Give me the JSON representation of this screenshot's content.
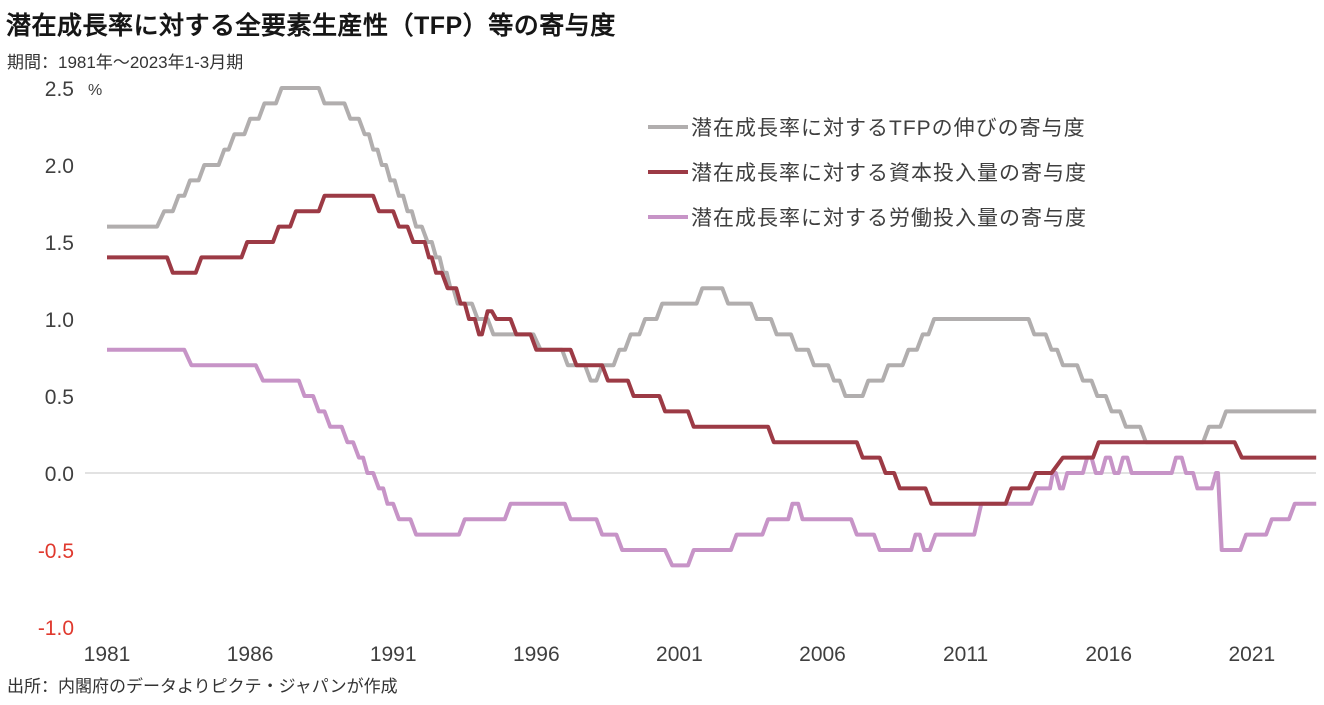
{
  "title": "潜在成長率に対する全要素生産性（TFP）等の寄与度",
  "subtitle": "期間：1981年～2023年1-3月期",
  "source": "出所：内閣府のデータよりピクテ・ジャパンが作成",
  "colors": {
    "tfp_line": "#b1aeae",
    "capital_line": "#9c3a45",
    "labor_line": "#c794c7",
    "axis_text": "#3f3f3f",
    "negative_tick": "#e0392e",
    "zero_gridline": "#d9d9d9",
    "title_text": "#161616"
  },
  "legend": [
    {
      "label": "潜在成長率に対するTFPの伸びの寄与度",
      "color": "#b1aeae"
    },
    {
      "label": "潜在成長率に対する資本投入量の寄与度",
      "color": "#9c3a45"
    },
    {
      "label": "潜在成長率に対する労働投入量の寄与度",
      "color": "#c794c7"
    }
  ],
  "chart_data": {
    "type": "line",
    "title": "潜在成長率に対する全要素生産性（TFP）等の寄与度",
    "xlabel": "",
    "ylabel": "%",
    "y_unit": "%",
    "x_range": [
      1981,
      2023.25
    ],
    "ylim": [
      -1.0,
      2.5
    ],
    "x_ticks": [
      1981,
      1986,
      1991,
      1996,
      2001,
      2006,
      2011,
      2016,
      2021
    ],
    "y_ticks": [
      2.5,
      2.0,
      1.5,
      1.0,
      0.5,
      0.0,
      -0.5,
      -1.0
    ],
    "grid": "zero-line-only",
    "legend_position": "top-right",
    "series": [
      {
        "name": "潜在成長率に対するTFPの伸びの寄与度",
        "color": "#b1aeae",
        "points": [
          [
            1981,
            1.6
          ],
          [
            1982.75,
            1.6
          ],
          [
            1983,
            1.7
          ],
          [
            1983.3,
            1.7
          ],
          [
            1983.5,
            1.8
          ],
          [
            1983.7,
            1.8
          ],
          [
            1983.9,
            1.9
          ],
          [
            1984.2,
            1.9
          ],
          [
            1984.4,
            2.0
          ],
          [
            1984.9,
            2.0
          ],
          [
            1985.1,
            2.1
          ],
          [
            1985.25,
            2.1
          ],
          [
            1985.45,
            2.2
          ],
          [
            1985.8,
            2.2
          ],
          [
            1986,
            2.3
          ],
          [
            1986.3,
            2.3
          ],
          [
            1986.5,
            2.4
          ],
          [
            1986.9,
            2.4
          ],
          [
            1987.1,
            2.5
          ],
          [
            1988.4,
            2.5
          ],
          [
            1988.6,
            2.4
          ],
          [
            1989.3,
            2.4
          ],
          [
            1989.5,
            2.3
          ],
          [
            1989.8,
            2.3
          ],
          [
            1990,
            2.2
          ],
          [
            1990.15,
            2.2
          ],
          [
            1990.3,
            2.1
          ],
          [
            1990.45,
            2.1
          ],
          [
            1990.6,
            2.0
          ],
          [
            1990.75,
            2.0
          ],
          [
            1990.9,
            1.9
          ],
          [
            1991.05,
            1.9
          ],
          [
            1991.2,
            1.8
          ],
          [
            1991.35,
            1.8
          ],
          [
            1991.5,
            1.7
          ],
          [
            1991.65,
            1.7
          ],
          [
            1991.8,
            1.6
          ],
          [
            1992,
            1.6
          ],
          [
            1992.2,
            1.5
          ],
          [
            1992.35,
            1.5
          ],
          [
            1992.5,
            1.4
          ],
          [
            1992.62,
            1.4
          ],
          [
            1992.75,
            1.3
          ],
          [
            1992.87,
            1.3
          ],
          [
            1993,
            1.2
          ],
          [
            1993.1,
            1.2
          ],
          [
            1993.25,
            1.1
          ],
          [
            1993.75,
            1.1
          ],
          [
            1993.95,
            1.0
          ],
          [
            1994.3,
            1.0
          ],
          [
            1994.5,
            0.9
          ],
          [
            1995.9,
            0.9
          ],
          [
            1996.15,
            0.8
          ],
          [
            1996.9,
            0.8
          ],
          [
            1997.1,
            0.7
          ],
          [
            1997.7,
            0.7
          ],
          [
            1997.9,
            0.6
          ],
          [
            1998.1,
            0.6
          ],
          [
            1998.3,
            0.7
          ],
          [
            1998.7,
            0.7
          ],
          [
            1998.9,
            0.8
          ],
          [
            1999.1,
            0.8
          ],
          [
            1999.3,
            0.9
          ],
          [
            1999.6,
            0.9
          ],
          [
            1999.8,
            1.0
          ],
          [
            2000.2,
            1.0
          ],
          [
            2000.4,
            1.1
          ],
          [
            2001.6,
            1.1
          ],
          [
            2001.8,
            1.2
          ],
          [
            2002.5,
            1.2
          ],
          [
            2002.7,
            1.1
          ],
          [
            2003.5,
            1.1
          ],
          [
            2003.7,
            1.0
          ],
          [
            2004.2,
            1.0
          ],
          [
            2004.4,
            0.9
          ],
          [
            2004.9,
            0.9
          ],
          [
            2005.1,
            0.8
          ],
          [
            2005.5,
            0.8
          ],
          [
            2005.7,
            0.7
          ],
          [
            2006.2,
            0.7
          ],
          [
            2006.4,
            0.6
          ],
          [
            2006.6,
            0.6
          ],
          [
            2006.8,
            0.5
          ],
          [
            2007.4,
            0.5
          ],
          [
            2007.6,
            0.6
          ],
          [
            2008.1,
            0.6
          ],
          [
            2008.3,
            0.7
          ],
          [
            2008.8,
            0.7
          ],
          [
            2009,
            0.8
          ],
          [
            2009.3,
            0.8
          ],
          [
            2009.5,
            0.9
          ],
          [
            2009.7,
            0.9
          ],
          [
            2009.9,
            1.0
          ],
          [
            2013.2,
            1.0
          ],
          [
            2013.4,
            0.9
          ],
          [
            2013.8,
            0.9
          ],
          [
            2014,
            0.8
          ],
          [
            2014.2,
            0.8
          ],
          [
            2014.4,
            0.7
          ],
          [
            2014.9,
            0.7
          ],
          [
            2015.1,
            0.6
          ],
          [
            2015.4,
            0.6
          ],
          [
            2015.6,
            0.5
          ],
          [
            2015.9,
            0.5
          ],
          [
            2016.1,
            0.4
          ],
          [
            2016.4,
            0.4
          ],
          [
            2016.6,
            0.3
          ],
          [
            2017.1,
            0.3
          ],
          [
            2017.3,
            0.2
          ],
          [
            2019.3,
            0.2
          ],
          [
            2019.5,
            0.3
          ],
          [
            2019.9,
            0.3
          ],
          [
            2020.1,
            0.4
          ],
          [
            2023.25,
            0.4
          ]
        ]
      },
      {
        "name": "潜在成長率に対する労働投入量の寄与度",
        "color": "#c794c7",
        "points": [
          [
            1981,
            0.8
          ],
          [
            1983.7,
            0.8
          ],
          [
            1983.95,
            0.7
          ],
          [
            1986.2,
            0.7
          ],
          [
            1986.45,
            0.6
          ],
          [
            1987.7,
            0.6
          ],
          [
            1987.9,
            0.5
          ],
          [
            1988.2,
            0.5
          ],
          [
            1988.4,
            0.4
          ],
          [
            1988.6,
            0.4
          ],
          [
            1988.8,
            0.3
          ],
          [
            1989.2,
            0.3
          ],
          [
            1989.4,
            0.2
          ],
          [
            1989.6,
            0.2
          ],
          [
            1989.8,
            0.1
          ],
          [
            1989.95,
            0.1
          ],
          [
            1990.1,
            0.0
          ],
          [
            1990.3,
            0.0
          ],
          [
            1990.5,
            -0.1
          ],
          [
            1990.65,
            -0.1
          ],
          [
            1990.8,
            -0.2
          ],
          [
            1991,
            -0.2
          ],
          [
            1991.2,
            -0.3
          ],
          [
            1991.6,
            -0.3
          ],
          [
            1991.8,
            -0.4
          ],
          [
            1993.3,
            -0.4
          ],
          [
            1993.5,
            -0.3
          ],
          [
            1994.9,
            -0.3
          ],
          [
            1995.1,
            -0.2
          ],
          [
            1997,
            -0.2
          ],
          [
            1997.2,
            -0.3
          ],
          [
            1998.1,
            -0.3
          ],
          [
            1998.3,
            -0.4
          ],
          [
            1998.8,
            -0.4
          ],
          [
            1999,
            -0.5
          ],
          [
            2000.5,
            -0.5
          ],
          [
            2000.75,
            -0.6
          ],
          [
            2001.3,
            -0.6
          ],
          [
            2001.5,
            -0.5
          ],
          [
            2002.8,
            -0.5
          ],
          [
            2003,
            -0.4
          ],
          [
            2003.9,
            -0.4
          ],
          [
            2004.1,
            -0.3
          ],
          [
            2004.8,
            -0.3
          ],
          [
            2004.95,
            -0.2
          ],
          [
            2005.15,
            -0.2
          ],
          [
            2005.3,
            -0.3
          ],
          [
            2007,
            -0.3
          ],
          [
            2007.2,
            -0.4
          ],
          [
            2007.8,
            -0.4
          ],
          [
            2008,
            -0.5
          ],
          [
            2009.1,
            -0.5
          ],
          [
            2009.25,
            -0.4
          ],
          [
            2009.4,
            -0.4
          ],
          [
            2009.55,
            -0.5
          ],
          [
            2009.75,
            -0.5
          ],
          [
            2009.95,
            -0.4
          ],
          [
            2011.3,
            -0.4
          ],
          [
            2011.55,
            -0.2
          ],
          [
            2013.3,
            -0.2
          ],
          [
            2013.5,
            -0.1
          ],
          [
            2013.95,
            -0.1
          ],
          [
            2014.05,
            0.0
          ],
          [
            2014.15,
            0.0
          ],
          [
            2014.3,
            -0.1
          ],
          [
            2014.4,
            -0.1
          ],
          [
            2014.55,
            0.0
          ],
          [
            2015.1,
            0.0
          ],
          [
            2015.25,
            0.1
          ],
          [
            2015.4,
            0.1
          ],
          [
            2015.55,
            0.0
          ],
          [
            2015.75,
            0.0
          ],
          [
            2015.9,
            0.1
          ],
          [
            2016.05,
            0.1
          ],
          [
            2016.2,
            0.0
          ],
          [
            2016.35,
            0.0
          ],
          [
            2016.5,
            0.1
          ],
          [
            2016.65,
            0.1
          ],
          [
            2016.8,
            0.0
          ],
          [
            2018.2,
            0.0
          ],
          [
            2018.35,
            0.1
          ],
          [
            2018.55,
            0.1
          ],
          [
            2018.7,
            0.0
          ],
          [
            2018.95,
            0.0
          ],
          [
            2019.1,
            -0.1
          ],
          [
            2019.6,
            -0.1
          ],
          [
            2019.75,
            0.0
          ],
          [
            2019.82,
            0.0
          ],
          [
            2019.95,
            -0.5
          ],
          [
            2020.6,
            -0.5
          ],
          [
            2020.8,
            -0.4
          ],
          [
            2021.5,
            -0.4
          ],
          [
            2021.7,
            -0.3
          ],
          [
            2022.3,
            -0.3
          ],
          [
            2022.5,
            -0.2
          ],
          [
            2023.25,
            -0.2
          ]
        ]
      },
      {
        "name": "潜在成長率に対する資本投入量の寄与度",
        "color": "#9c3a45",
        "points": [
          [
            1981,
            1.4
          ],
          [
            1983.1,
            1.4
          ],
          [
            1983.3,
            1.3
          ],
          [
            1984.1,
            1.3
          ],
          [
            1984.3,
            1.4
          ],
          [
            1985.7,
            1.4
          ],
          [
            1985.9,
            1.5
          ],
          [
            1986.8,
            1.5
          ],
          [
            1987,
            1.6
          ],
          [
            1987.4,
            1.6
          ],
          [
            1987.6,
            1.7
          ],
          [
            1988.4,
            1.7
          ],
          [
            1988.6,
            1.8
          ],
          [
            1990.3,
            1.8
          ],
          [
            1990.5,
            1.7
          ],
          [
            1991,
            1.7
          ],
          [
            1991.2,
            1.6
          ],
          [
            1991.5,
            1.6
          ],
          [
            1991.7,
            1.5
          ],
          [
            1992.1,
            1.5
          ],
          [
            1992.25,
            1.4
          ],
          [
            1992.35,
            1.4
          ],
          [
            1992.5,
            1.3
          ],
          [
            1992.7,
            1.3
          ],
          [
            1992.9,
            1.2
          ],
          [
            1993.2,
            1.2
          ],
          [
            1993.35,
            1.1
          ],
          [
            1993.5,
            1.1
          ],
          [
            1993.65,
            1.0
          ],
          [
            1993.85,
            1.0
          ],
          [
            1994,
            0.9
          ],
          [
            1994.1,
            0.9
          ],
          [
            1994.3,
            1.05
          ],
          [
            1994.45,
            1.05
          ],
          [
            1994.6,
            1.0
          ],
          [
            1995.1,
            1.0
          ],
          [
            1995.3,
            0.9
          ],
          [
            1995.8,
            0.9
          ],
          [
            1996,
            0.8
          ],
          [
            1997.2,
            0.8
          ],
          [
            1997.4,
            0.7
          ],
          [
            1998.3,
            0.7
          ],
          [
            1998.5,
            0.6
          ],
          [
            1999.2,
            0.6
          ],
          [
            1999.4,
            0.5
          ],
          [
            2000.3,
            0.5
          ],
          [
            2000.5,
            0.4
          ],
          [
            2001.3,
            0.4
          ],
          [
            2001.5,
            0.3
          ],
          [
            2004.1,
            0.3
          ],
          [
            2004.3,
            0.2
          ],
          [
            2007.2,
            0.2
          ],
          [
            2007.4,
            0.1
          ],
          [
            2008,
            0.1
          ],
          [
            2008.2,
            0.0
          ],
          [
            2008.5,
            0.0
          ],
          [
            2008.7,
            -0.1
          ],
          [
            2009.6,
            -0.1
          ],
          [
            2009.8,
            -0.2
          ],
          [
            2012.4,
            -0.2
          ],
          [
            2012.6,
            -0.1
          ],
          [
            2013.2,
            -0.1
          ],
          [
            2013.45,
            0.0
          ],
          [
            2014,
            0.0
          ],
          [
            2014.4,
            0.1
          ],
          [
            2015.45,
            0.1
          ],
          [
            2015.65,
            0.2
          ],
          [
            2020.4,
            0.2
          ],
          [
            2020.65,
            0.1
          ],
          [
            2023.25,
            0.1
          ]
        ]
      }
    ]
  }
}
